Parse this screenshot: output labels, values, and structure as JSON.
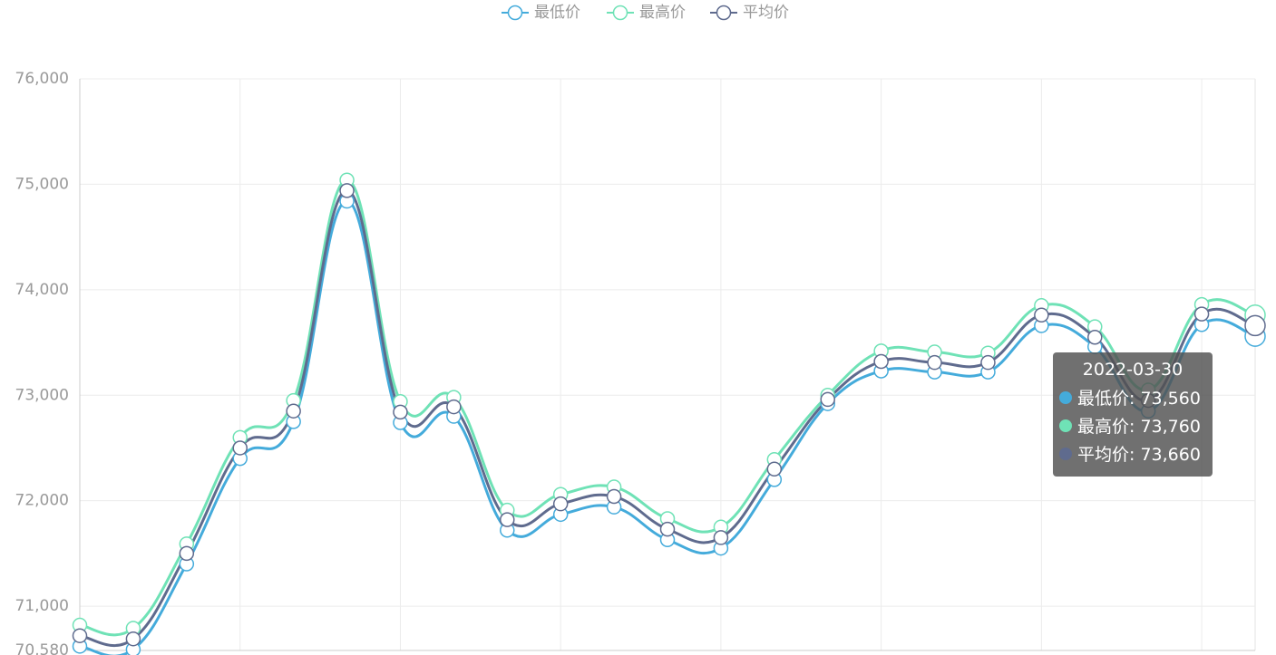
{
  "chart_data": {
    "type": "line",
    "categories": [
      null,
      null,
      null,
      null,
      null,
      null,
      null,
      null,
      null,
      null,
      null,
      null,
      null,
      null,
      null,
      null,
      null,
      null,
      null,
      null,
      null,
      null,
      null
    ],
    "series": [
      {
        "name": "最低价",
        "color": "#44abdb",
        "values": [
          70620,
          70590,
          71400,
          72400,
          72750,
          74840,
          72740,
          72800,
          71720,
          71870,
          71940,
          71630,
          71550,
          72200,
          72920,
          73230,
          73220,
          73220,
          73660,
          73460,
          72850,
          73670,
          73560
        ]
      },
      {
        "name": "最高价",
        "color": "#6fe2b6",
        "values": [
          70820,
          70790,
          71590,
          72600,
          72950,
          75040,
          72940,
          72980,
          71910,
          72060,
          72130,
          71830,
          71750,
          72390,
          73000,
          73420,
          73410,
          73400,
          73850,
          73650,
          73050,
          73860,
          73760
        ]
      },
      {
        "name": "平均价",
        "color": "#5f6b8e",
        "values": [
          70720,
          70690,
          71500,
          72500,
          72850,
          74940,
          72840,
          72890,
          71820,
          71970,
          72040,
          71730,
          71650,
          72300,
          72960,
          73320,
          73310,
          73310,
          73760,
          73550,
          72950,
          73770,
          73660
        ]
      }
    ],
    "ylim": [
      70580,
      76000
    ],
    "yticks": [
      {
        "value": 70580,
        "label": "70,580"
      },
      {
        "value": 71000,
        "label": "71,000"
      },
      {
        "value": 72000,
        "label": "72,000"
      },
      {
        "value": 73000,
        "label": "73,000"
      },
      {
        "value": 74000,
        "label": "74,000"
      },
      {
        "value": 75000,
        "label": "75,000"
      },
      {
        "value": 76000,
        "label": "76,000"
      }
    ],
    "grid": true,
    "legend": "top",
    "tooltip": {
      "title": "2022-03-30",
      "items": [
        "最低价: 73,560",
        "最高价: 73,760",
        "平均价: 73,660"
      ]
    }
  }
}
